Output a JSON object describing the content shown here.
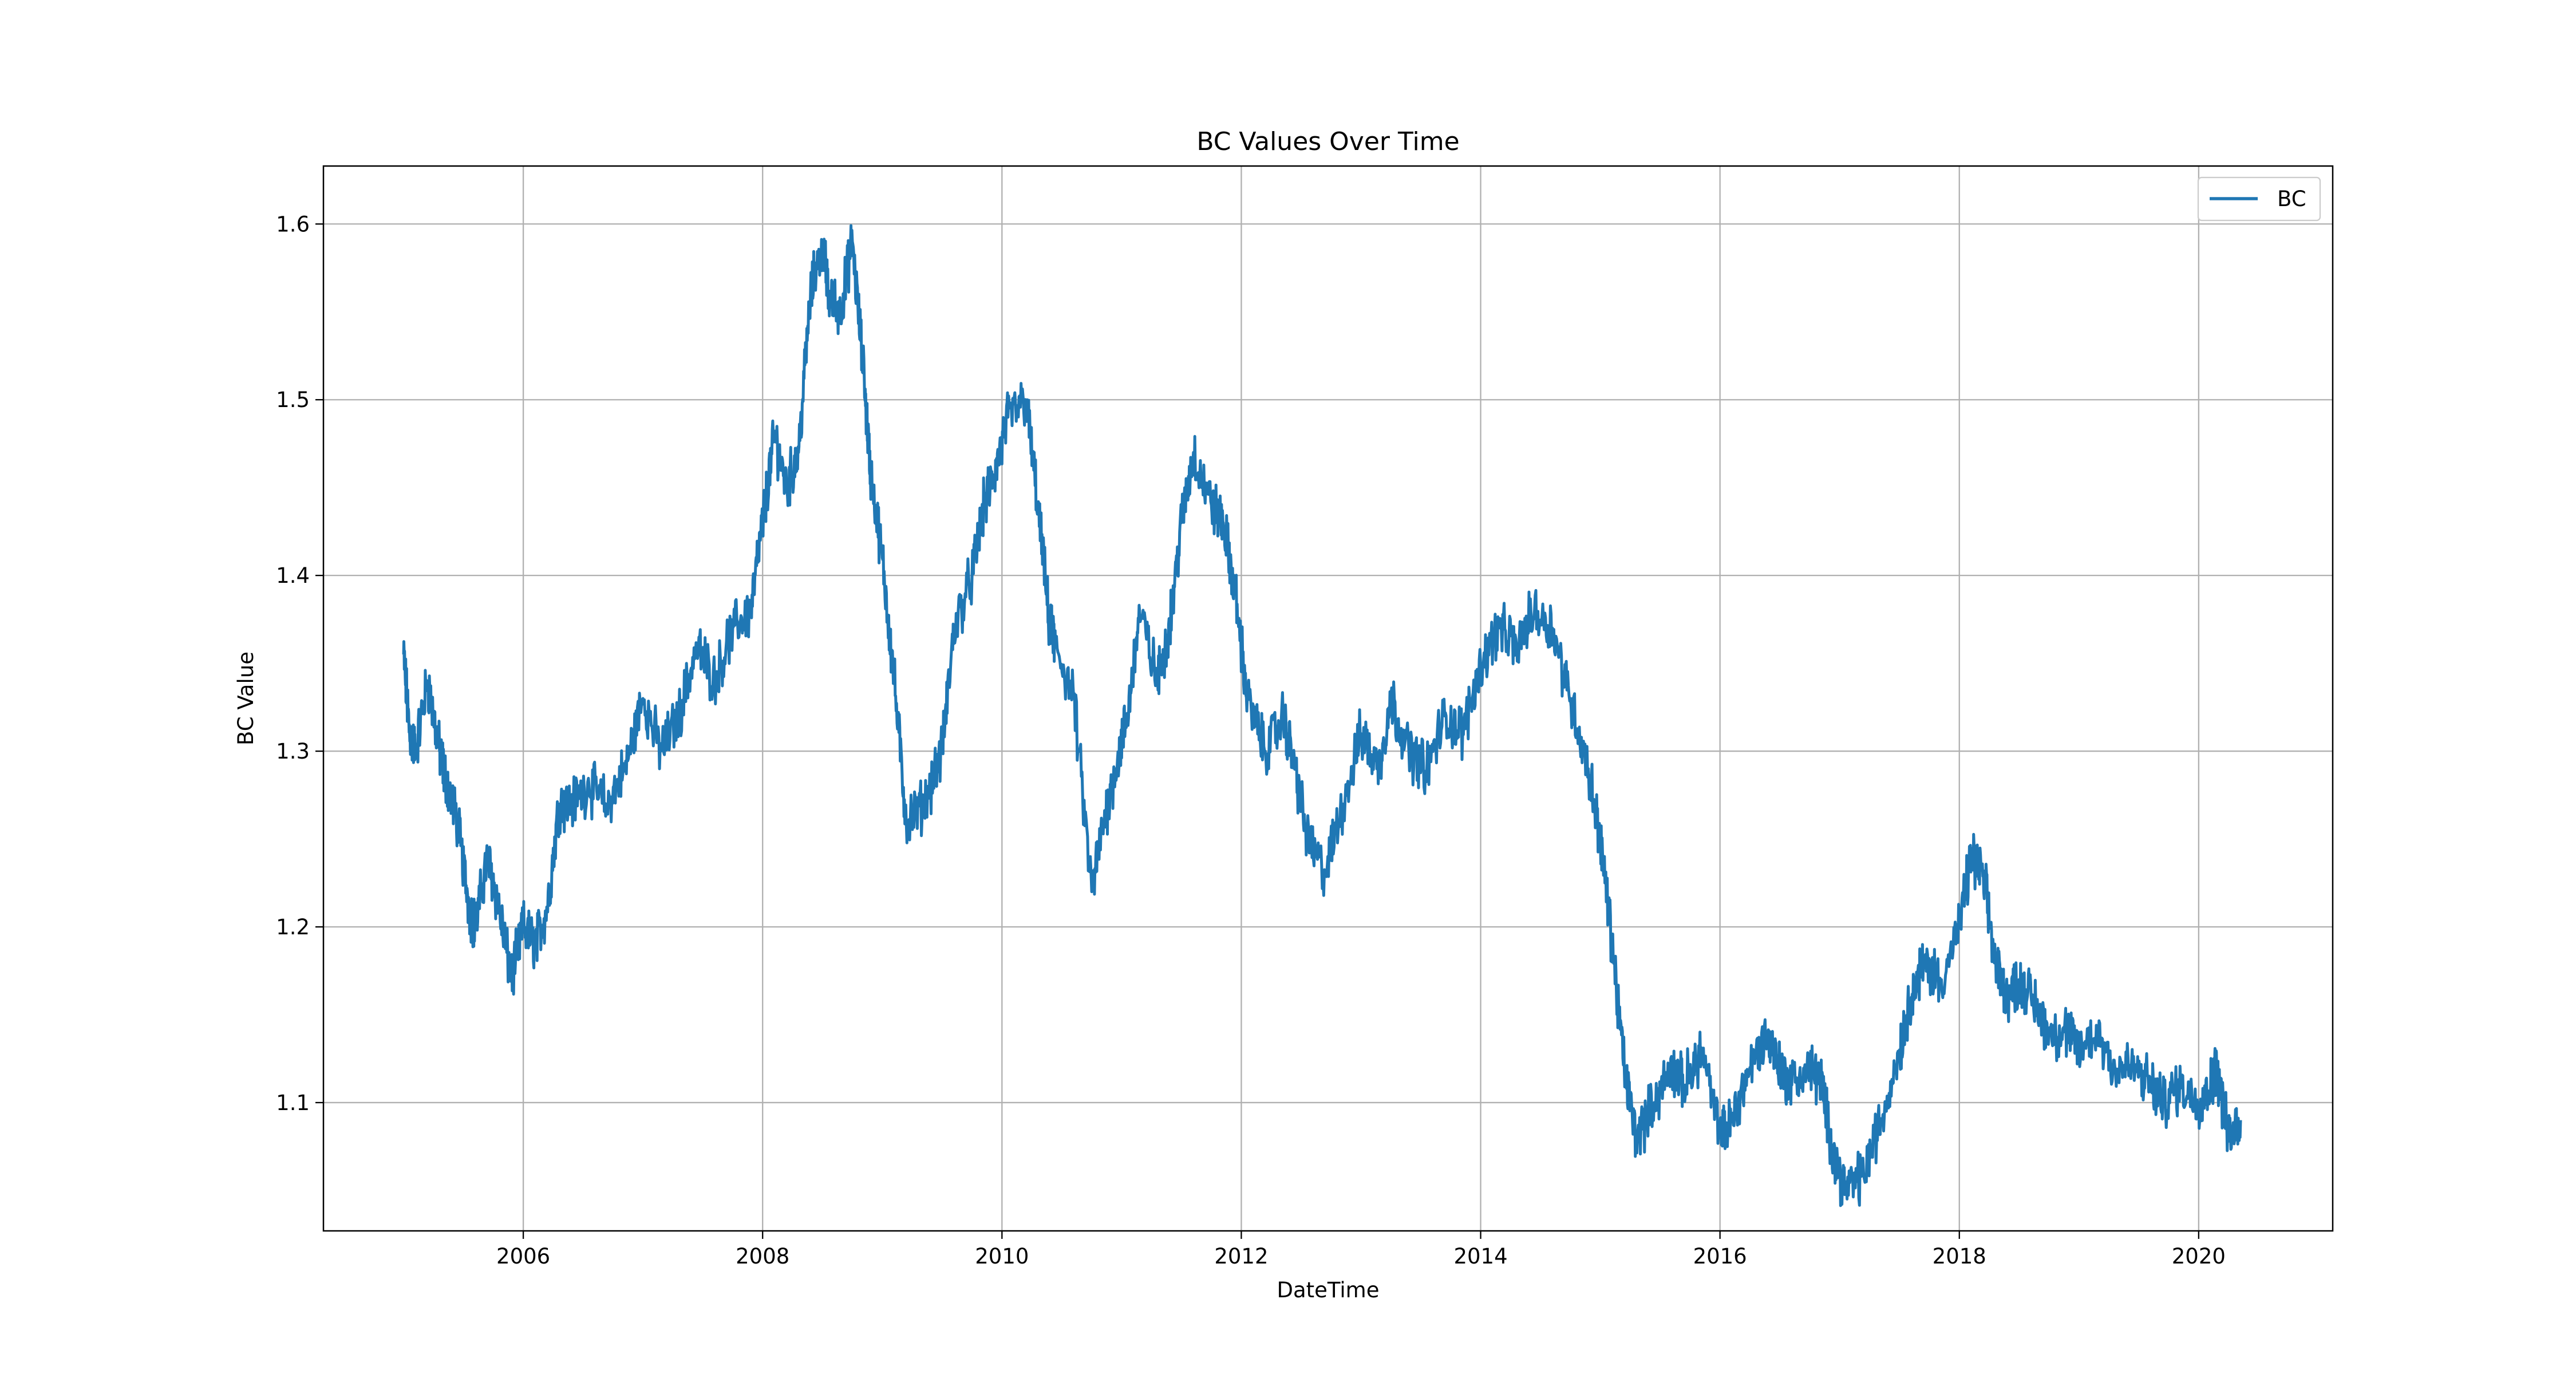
{
  "chart_data": {
    "type": "line",
    "title": "BC Values Over Time",
    "xlabel": "DateTime",
    "ylabel": "BC Value",
    "xlim": [
      2004.33,
      2021.12
    ],
    "ylim": [
      1.027,
      1.633
    ],
    "x_ticks": [
      2006,
      2008,
      2010,
      2012,
      2014,
      2016,
      2018,
      2020
    ],
    "x_tick_labels": [
      "2006",
      "2008",
      "2010",
      "2012",
      "2014",
      "2016",
      "2018",
      "2020"
    ],
    "y_ticks": [
      1.1,
      1.2,
      1.3,
      1.4,
      1.5,
      1.6
    ],
    "y_tick_labels": [
      "1.1",
      "1.2",
      "1.3",
      "1.4",
      "1.5",
      "1.6"
    ],
    "grid": true,
    "legend_position": "top-right",
    "series": [
      {
        "name": "BC",
        "color": "#1f77b4",
        "x": [
          2005.0,
          2005.05,
          2005.1,
          2005.2,
          2005.3,
          2005.35,
          2005.45,
          2005.55,
          2005.6,
          2005.7,
          2005.8,
          2005.9,
          2006.0,
          2006.1,
          2006.2,
          2006.3,
          2006.4,
          2006.55,
          2006.7,
          2006.85,
          2007.0,
          2007.15,
          2007.3,
          2007.45,
          2007.6,
          2007.75,
          2007.9,
          2008.0,
          2008.1,
          2008.2,
          2008.3,
          2008.4,
          2008.5,
          2008.55,
          2008.65,
          2008.75,
          2008.85,
          2008.9,
          2009.0,
          2009.1,
          2009.2,
          2009.35,
          2009.5,
          2009.6,
          2009.75,
          2009.85,
          2009.95,
          2010.05,
          2010.2,
          2010.3,
          2010.4,
          2010.45,
          2010.6,
          2010.75,
          2010.85,
          2010.95,
          2011.05,
          2011.15,
          2011.3,
          2011.4,
          2011.5,
          2011.6,
          2011.75,
          2011.85,
          2011.95,
          2012.05,
          2012.2,
          2012.35,
          2012.45,
          2012.55,
          2012.7,
          2012.85,
          2013.0,
          2013.15,
          2013.25,
          2013.4,
          2013.55,
          2013.7,
          2013.85,
          2014.0,
          2014.15,
          2014.3,
          2014.45,
          2014.6,
          2014.75,
          2014.9,
          2015.0,
          2015.1,
          2015.2,
          2015.3,
          2015.45,
          2015.6,
          2015.7,
          2015.85,
          2016.0,
          2016.1,
          2016.25,
          2016.4,
          2016.5,
          2016.6,
          2016.75,
          2016.85,
          2016.95,
          2017.05,
          2017.2,
          2017.35,
          2017.5,
          2017.6,
          2017.7,
          2017.85,
          2018.0,
          2018.1,
          2018.2,
          2018.3,
          2018.4,
          2018.5,
          2018.6,
          2018.75,
          2018.9,
          2019.0,
          2019.15,
          2019.3,
          2019.45,
          2019.6,
          2019.7,
          2019.85,
          2020.0,
          2020.1,
          2020.15,
          2020.25,
          2020.35
        ],
        "y": [
          1.355,
          1.31,
          1.3,
          1.34,
          1.3,
          1.285,
          1.26,
          1.21,
          1.2,
          1.24,
          1.21,
          1.17,
          1.2,
          1.19,
          1.21,
          1.27,
          1.27,
          1.28,
          1.27,
          1.29,
          1.33,
          1.3,
          1.32,
          1.36,
          1.34,
          1.37,
          1.38,
          1.43,
          1.48,
          1.45,
          1.47,
          1.56,
          1.59,
          1.56,
          1.55,
          1.59,
          1.51,
          1.46,
          1.41,
          1.34,
          1.26,
          1.27,
          1.3,
          1.37,
          1.4,
          1.44,
          1.46,
          1.49,
          1.5,
          1.44,
          1.37,
          1.36,
          1.33,
          1.22,
          1.26,
          1.29,
          1.32,
          1.38,
          1.34,
          1.37,
          1.43,
          1.47,
          1.44,
          1.43,
          1.39,
          1.33,
          1.3,
          1.32,
          1.29,
          1.25,
          1.23,
          1.27,
          1.31,
          1.29,
          1.33,
          1.3,
          1.29,
          1.32,
          1.31,
          1.35,
          1.37,
          1.36,
          1.38,
          1.37,
          1.33,
          1.29,
          1.25,
          1.19,
          1.12,
          1.08,
          1.1,
          1.12,
          1.11,
          1.13,
          1.08,
          1.09,
          1.12,
          1.14,
          1.12,
          1.11,
          1.12,
          1.11,
          1.07,
          1.05,
          1.06,
          1.09,
          1.13,
          1.16,
          1.18,
          1.17,
          1.2,
          1.24,
          1.23,
          1.18,
          1.16,
          1.17,
          1.16,
          1.14,
          1.14,
          1.13,
          1.14,
          1.12,
          1.12,
          1.11,
          1.1,
          1.11,
          1.1,
          1.11,
          1.12,
          1.08,
          1.09
        ]
      }
    ]
  }
}
